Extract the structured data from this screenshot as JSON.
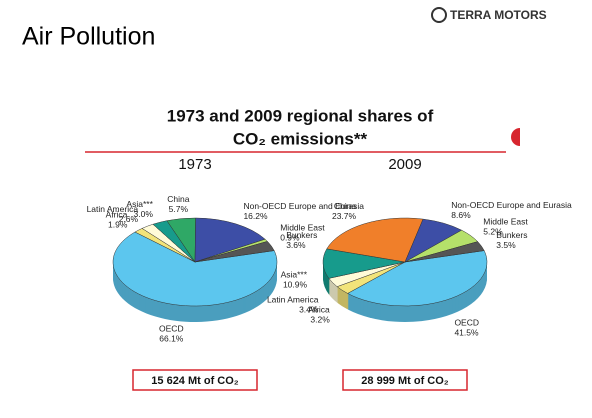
{
  "header": {
    "title": "Air Pollution",
    "logo": "TERRA MOTORS",
    "heading_line1": "1973 and 2009 regional shares of",
    "heading_line2": "CO₂ emissions**"
  },
  "chart_data": [
    {
      "type": "pie",
      "title": "1973",
      "categories": [
        "OECD",
        "Africa",
        "Latin America",
        "Asia***",
        "China",
        "Non-OECD Europe and Eurasia",
        "Middle East",
        "Bunkers"
      ],
      "values": [
        66.1,
        1.9,
        2.6,
        3.0,
        5.7,
        16.2,
        0.9,
        3.6
      ],
      "value_labels": [
        "66.1%",
        "1.9%",
        "2.6%",
        "3.0%",
        "5.7%",
        "16.2%",
        "0.9%",
        "3.6%"
      ],
      "colors": [
        "#5cc6ee",
        "#f2e47a",
        "#fffbd8",
        "#179b8c",
        "#2fa866",
        "#3d4ea6",
        "#b5e06a",
        "#555555"
      ],
      "total": "15 624 Mt of CO₂"
    },
    {
      "type": "pie",
      "title": "2009",
      "categories": [
        "OECD",
        "Africa",
        "Latin America",
        "Asia***",
        "China",
        "Non-OECD Europe and Eurasia",
        "Middle East",
        "Bunkers"
      ],
      "values": [
        41.5,
        3.2,
        3.4,
        10.9,
        23.7,
        8.6,
        5.2,
        3.5
      ],
      "value_labels": [
        "41.5%",
        "3.2%",
        "3.4%",
        "10.9%",
        "23.7%",
        "8.6%",
        "5.2%",
        "3.5%"
      ],
      "colors": [
        "#5cc6ee",
        "#f2e47a",
        "#fffbd8",
        "#179b8c",
        "#f07f2a",
        "#3d4ea6",
        "#b5e06a",
        "#555555"
      ],
      "total": "28 999 Mt of CO₂"
    }
  ]
}
